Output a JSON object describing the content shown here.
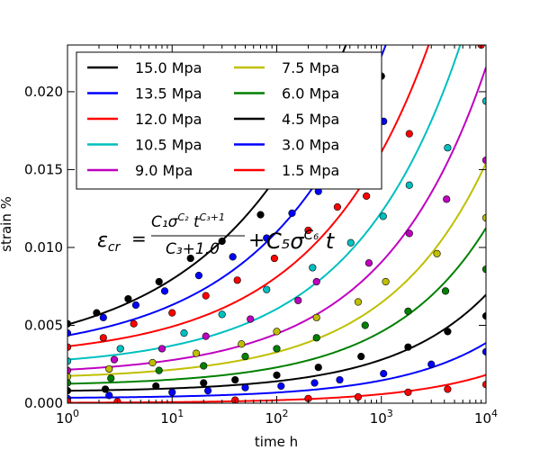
{
  "chart_data": {
    "type": "line",
    "title": "",
    "xlabel": "time h",
    "ylabel": "strain %",
    "xscale": "log",
    "xlim": [
      1,
      10000
    ],
    "ylim": [
      0,
      0.023
    ],
    "grid": false,
    "legend_position": "top-left",
    "legend_columns": 2,
    "x_ticks": [
      {
        "value": 1,
        "base": "10",
        "exp": "0"
      },
      {
        "value": 10,
        "base": "10",
        "exp": "1"
      },
      {
        "value": 100,
        "base": "10",
        "exp": "2"
      },
      {
        "value": 1000,
        "base": "10",
        "exp": "3"
      },
      {
        "value": 10000,
        "base": "10",
        "exp": "4"
      }
    ],
    "y_ticks": [
      {
        "value": 0,
        "label": "0.000"
      },
      {
        "value": 0.005,
        "label": "0.005"
      },
      {
        "value": 0.01,
        "label": "0.010"
      },
      {
        "value": 0.015,
        "label": "0.015"
      },
      {
        "value": 0.02,
        "label": "0.020"
      }
    ],
    "series": [
      {
        "name": "15.0 Mpa",
        "color": "#000000",
        "a": 0.00505,
        "b": 0.0023,
        "p": 0.355,
        "points": [
          [
            1,
            0.0051
          ],
          [
            1.9,
            0.0058
          ],
          [
            3.8,
            0.0067
          ],
          [
            7.5,
            0.0078
          ],
          [
            15,
            0.0093
          ],
          [
            30,
            0.0104
          ],
          [
            70,
            0.0121
          ],
          [
            140,
            0.0145
          ],
          [
            300,
            0.0162
          ],
          [
            600,
            0.0185
          ],
          [
            1000,
            0.021
          ]
        ]
      },
      {
        "name": "13.5 Mpa",
        "color": "#0000ff",
        "a": 0.00435,
        "b": 0.0014,
        "p": 0.38,
        "points": [
          [
            1,
            0.0045
          ],
          [
            2.2,
            0.0055
          ],
          [
            4.5,
            0.0063
          ],
          [
            8.5,
            0.0072
          ],
          [
            18,
            0.0082
          ],
          [
            38,
            0.0094
          ],
          [
            80,
            0.0106
          ],
          [
            140,
            0.0122
          ],
          [
            250,
            0.0136
          ],
          [
            600,
            0.0159
          ],
          [
            1050,
            0.0181
          ]
        ]
      },
      {
        "name": "12.0 Mpa",
        "color": "#ff0000",
        "a": 0.00365,
        "b": 0.00084,
        "p": 0.4,
        "points": [
          [
            1,
            0.0036
          ],
          [
            2.2,
            0.0042
          ],
          [
            4.3,
            0.0051
          ],
          [
            10,
            0.0058
          ],
          [
            21,
            0.0069
          ],
          [
            42,
            0.0079
          ],
          [
            95,
            0.0093
          ],
          [
            200,
            0.0111
          ],
          [
            380,
            0.0126
          ],
          [
            720,
            0.0133
          ],
          [
            1850,
            0.0173
          ],
          [
            9000,
            0.023
          ]
        ]
      },
      {
        "name": "10.5 Mpa",
        "color": "#00bfbf",
        "a": 0.0028,
        "b": 0.00055,
        "p": 0.42,
        "points": [
          [
            1,
            0.0027
          ],
          [
            3.2,
            0.0035
          ],
          [
            13,
            0.0045
          ],
          [
            30,
            0.0057
          ],
          [
            80,
            0.0073
          ],
          [
            220,
            0.0087
          ],
          [
            510,
            0.0103
          ],
          [
            1040,
            0.012
          ],
          [
            1850,
            0.014
          ],
          [
            4300,
            0.0164
          ],
          [
            10000,
            0.0194
          ]
        ]
      },
      {
        "name": "9.0 Mpa",
        "color": "#bf00bf",
        "a": 0.00215,
        "b": 0.00036,
        "p": 0.435,
        "points": [
          [
            1,
            0.0021
          ],
          [
            2.8,
            0.0028
          ],
          [
            8,
            0.0035
          ],
          [
            21,
            0.0043
          ],
          [
            56,
            0.0054
          ],
          [
            160,
            0.0066
          ],
          [
            240,
            0.0078
          ],
          [
            760,
            0.009
          ],
          [
            1850,
            0.0109
          ],
          [
            4200,
            0.0131
          ],
          [
            10000,
            0.0156
          ]
        ]
      },
      {
        "name": "7.5 Mpa",
        "color": "#bfbf00",
        "a": 0.00175,
        "b": 0.00022,
        "p": 0.45,
        "points": [
          [
            1,
            0.0017
          ],
          [
            2.5,
            0.0022
          ],
          [
            6.5,
            0.0026
          ],
          [
            17,
            0.0032
          ],
          [
            46,
            0.0038
          ],
          [
            100,
            0.0046
          ],
          [
            240,
            0.0055
          ],
          [
            600,
            0.0065
          ],
          [
            1100,
            0.0078
          ],
          [
            3400,
            0.0096
          ],
          [
            10000,
            0.0119
          ]
        ]
      },
      {
        "name": "6.0 Mpa",
        "color": "#008000",
        "a": 0.00125,
        "b": 0.00014,
        "p": 0.465,
        "points": [
          [
            1,
            0.0013
          ],
          [
            2.6,
            0.0016
          ],
          [
            7.5,
            0.0021
          ],
          [
            20,
            0.0024
          ],
          [
            50,
            0.003
          ],
          [
            100,
            0.0035
          ],
          [
            240,
            0.0042
          ],
          [
            700,
            0.005
          ],
          [
            1800,
            0.0059
          ],
          [
            4100,
            0.0072
          ],
          [
            10000,
            0.0086
          ]
        ]
      },
      {
        "name": "4.5 Mpa",
        "color": "#000000",
        "a": 0.0008,
        "b": 7.5e-05,
        "p": 0.48,
        "points": [
          [
            1,
            0.0008
          ],
          [
            2.3,
            0.0009
          ],
          [
            7,
            0.0011
          ],
          [
            20,
            0.0013
          ],
          [
            40,
            0.0015
          ],
          [
            100,
            0.0018
          ],
          [
            250,
            0.0023
          ],
          [
            640,
            0.003
          ],
          [
            1800,
            0.0036
          ],
          [
            4300,
            0.0046
          ],
          [
            10000,
            0.0056
          ]
        ]
      },
      {
        "name": "3.0 Mpa",
        "color": "#0000ff",
        "a": 0.00035,
        "b": 3.9e-05,
        "p": 0.49,
        "points": [
          [
            1,
            0.0003
          ],
          [
            2.5,
            0.0005
          ],
          [
            10,
            0.0007
          ],
          [
            22,
            0.0008
          ],
          [
            50,
            0.001
          ],
          [
            110,
            0.0011
          ],
          [
            230,
            0.0013
          ],
          [
            400,
            0.0015
          ],
          [
            1050,
            0.0019
          ],
          [
            3000,
            0.0025
          ],
          [
            10000,
            0.0033
          ]
        ]
      },
      {
        "name": "1.5 Mpa",
        "color": "#ff0000",
        "a": 3e-05,
        "b": 1.8e-05,
        "p": 0.5,
        "points": [
          [
            1,
            0.0001
          ],
          [
            3,
            0.0001
          ],
          [
            40,
            0.0002
          ],
          [
            200,
            0.0003
          ],
          [
            600,
            0.0004
          ],
          [
            1800,
            0.0007
          ],
          [
            4300,
            0.0009
          ],
          [
            10000,
            0.0012
          ]
        ]
      }
    ],
    "annotation": {
      "lhs": "ε",
      "lhs_sub": "cr",
      "equals": "=",
      "numerator": "C₁σ",
      "num_sup1": "C₂",
      "num_t": " t",
      "num_sup2": "C₃+1",
      "denominator": "C₃+1.0",
      "plus": "+",
      "term2": "C₅σ",
      "term2_sup": "C₆",
      "term2_t": " t"
    }
  }
}
